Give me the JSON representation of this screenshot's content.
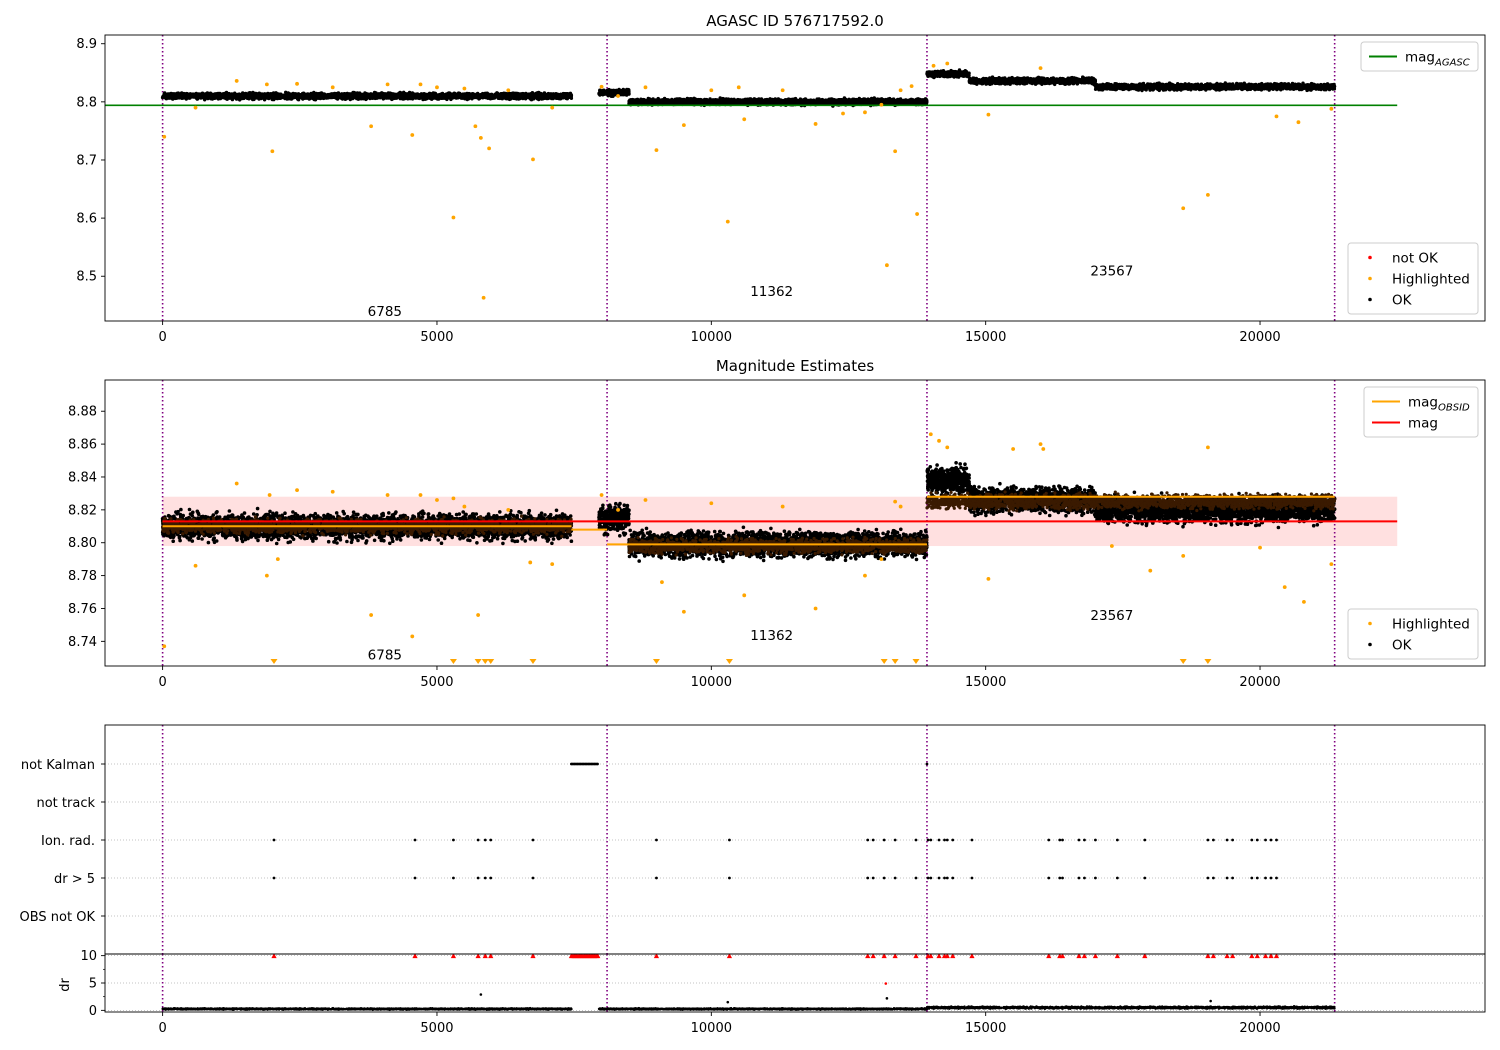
{
  "chart_data": [
    {
      "id": "p1",
      "type": "scatter",
      "title": "AGASC ID 576717592.0",
      "xlim": [
        -1050,
        24100
      ],
      "ylim": [
        8.423,
        8.915
      ],
      "xticks": [
        0,
        5000,
        10000,
        15000,
        20000
      ],
      "yticks": [
        8.5,
        8.6,
        8.7,
        8.8,
        8.9
      ],
      "grid": false,
      "obs_boundaries": [
        0,
        8100,
        13930,
        21360
      ],
      "obsid_labels": [
        {
          "text": "6785",
          "x": 4050,
          "y": 8.44
        },
        {
          "text": "11362",
          "x": 11100,
          "y": 8.475
        },
        {
          "text": "23567",
          "x": 17300,
          "y": 8.51
        }
      ],
      "lines": [
        {
          "name": "mag_AGASC",
          "color": "#008000",
          "x": [
            -1050,
            22500
          ],
          "y": [
            8.794,
            8.794
          ]
        }
      ],
      "bands": [
        {
          "name": "OK",
          "color": "#000000",
          "segments": [
            {
              "x0": 0,
              "x1": 7450,
              "center": 8.81,
              "spread": 0.009
            },
            {
              "x0": 7950,
              "x1": 8500,
              "center": 8.816,
              "spread": 0.009
            },
            {
              "x0": 8500,
              "x1": 13930,
              "center": 8.8,
              "spread": 0.009
            },
            {
              "x0": 13930,
              "x1": 14700,
              "center": 8.848,
              "spread": 0.009
            },
            {
              "x0": 14700,
              "x1": 17000,
              "center": 8.836,
              "spread": 0.009
            },
            {
              "x0": 17000,
              "x1": 21360,
              "center": 8.826,
              "spread": 0.009
            }
          ]
        }
      ],
      "series": [
        {
          "name": "not OK",
          "color": "#ff0000",
          "x": [],
          "y": []
        },
        {
          "name": "Highlighted",
          "color": "#ffa500",
          "x": [
            30,
            600,
            1350,
            1900,
            2000,
            2450,
            3100,
            3800,
            4100,
            4550,
            4700,
            5000,
            5300,
            5500,
            5700,
            5800,
            5850,
            5950,
            6300,
            6750,
            7100,
            8000,
            8300,
            8800,
            9000,
            9500,
            10000,
            10300,
            10500,
            10600,
            11300,
            11900,
            12400,
            12800,
            13100,
            13200,
            13350,
            13450,
            13650,
            13750,
            14050,
            14300,
            15050,
            16000,
            18600,
            19050,
            20300,
            20700,
            21300
          ],
          "y": [
            8.74,
            8.79,
            8.836,
            8.83,
            8.715,
            8.831,
            8.825,
            8.758,
            8.83,
            8.743,
            8.83,
            8.825,
            8.601,
            8.823,
            8.758,
            8.738,
            8.463,
            8.72,
            8.82,
            8.701,
            8.79,
            8.826,
            8.81,
            8.825,
            8.717,
            8.76,
            8.82,
            8.594,
            8.825,
            8.77,
            8.82,
            8.762,
            8.78,
            8.782,
            8.795,
            8.519,
            8.715,
            8.82,
            8.827,
            8.607,
            8.862,
            8.866,
            8.778,
            8.858,
            8.617,
            8.64,
            8.775,
            8.765,
            8.788
          ]
        },
        {
          "name": "OK",
          "color": "#000000",
          "x": [],
          "y": []
        }
      ],
      "legends": [
        {
          "position": "upper right",
          "entries": [
            {
              "label": "mag",
              "sub": "AGASC",
              "kind": "line",
              "color": "#008000"
            }
          ]
        },
        {
          "position": "lower right",
          "entries": [
            {
              "label": "not OK",
              "kind": "dot",
              "color": "#ff0000"
            },
            {
              "label": "Highlighted",
              "kind": "dot",
              "color": "#ffa500"
            },
            {
              "label": "OK",
              "kind": "dot",
              "color": "#000000"
            }
          ]
        }
      ]
    },
    {
      "id": "p2",
      "type": "scatter",
      "title": "Magnitude Estimates",
      "xlim": [
        -1050,
        24100
      ],
      "ylim": [
        8.725,
        8.899
      ],
      "xticks": [
        0,
        5000,
        10000,
        15000,
        20000
      ],
      "yticks": [
        8.74,
        8.76,
        8.78,
        8.8,
        8.82,
        8.84,
        8.86,
        8.88
      ],
      "ytick_labels": [
        "8.74",
        "8.76",
        "8.78",
        "8.80",
        "8.82",
        "8.84",
        "8.86",
        "8.88"
      ],
      "grid": false,
      "obs_boundaries": [
        0,
        8100,
        13930,
        21360
      ],
      "obsid_labels": [
        {
          "text": "6785",
          "x": 4050,
          "y": 8.732
        },
        {
          "text": "11362",
          "x": 11100,
          "y": 8.744
        },
        {
          "text": "23567",
          "x": 17300,
          "y": 8.756
        }
      ],
      "shaded_band": {
        "x0": 0,
        "x1": 22500,
        "y0": 8.798,
        "y1": 8.828,
        "color": "#ffcccc"
      },
      "bands": [
        {
          "name": "OK",
          "color": "#000000",
          "segments": [
            {
              "x0": 0,
              "x1": 7450,
              "center": 8.81,
              "spread": 0.014
            },
            {
              "x0": 7950,
              "x1": 8500,
              "center": 8.815,
              "spread": 0.014
            },
            {
              "x0": 8500,
              "x1": 13930,
              "center": 8.799,
              "spread": 0.014
            },
            {
              "x0": 13930,
              "x1": 14700,
              "center": 8.838,
              "spread": 0.015
            },
            {
              "x0": 14700,
              "x1": 17000,
              "center": 8.826,
              "spread": 0.014
            },
            {
              "x0": 17000,
              "x1": 21360,
              "center": 8.82,
              "spread": 0.014
            }
          ]
        }
      ],
      "inner_bands": [
        {
          "color": "#3a1a00",
          "segments": [
            {
              "x0": 0,
              "x1": 7450,
              "center": 8.81,
              "spread": 0.008
            },
            {
              "x0": 8500,
              "x1": 13930,
              "center": 8.798,
              "spread": 0.008
            },
            {
              "x0": 13930,
              "x1": 21360,
              "center": 8.825,
              "spread": 0.008
            }
          ]
        }
      ],
      "lines": [
        {
          "name": "mag_OBSID",
          "color": "#ffa500",
          "segments": [
            {
              "x": [
                0,
                7450
              ],
              "y": [
                8.81,
                8.81
              ]
            },
            {
              "x": [
                7450,
                8100
              ],
              "y": [
                8.808,
                8.808
              ]
            },
            {
              "x": [
                8100,
                13930
              ],
              "y": [
                8.799,
                8.799
              ]
            },
            {
              "x": [
                13930,
                21360
              ],
              "y": [
                8.828,
                8.828
              ]
            }
          ]
        },
        {
          "name": "mag",
          "color": "#ff0000",
          "segments": [
            {
              "x": [
                0,
                22500
              ],
              "y": [
                8.813,
                8.813
              ]
            }
          ]
        }
      ],
      "series": [
        {
          "name": "Highlighted",
          "color": "#ffa500",
          "x": [
            30,
            600,
            1350,
            1900,
            1950,
            2100,
            2450,
            3100,
            3800,
            4100,
            4550,
            4700,
            5000,
            5300,
            5500,
            5750,
            6300,
            6700,
            7100,
            8000,
            8300,
            8800,
            9100,
            9500,
            10000,
            10600,
            11300,
            11900,
            12800,
            13100,
            13350,
            13450,
            14000,
            14150,
            14300,
            15050,
            15500,
            16000,
            16050,
            17300,
            18000,
            18600,
            19050,
            20000,
            20450,
            20800,
            21300
          ],
          "y": [
            8.737,
            8.786,
            8.836,
            8.78,
            8.829,
            8.79,
            8.832,
            8.831,
            8.756,
            8.829,
            8.743,
            8.829,
            8.826,
            8.827,
            8.822,
            8.756,
            8.82,
            8.788,
            8.787,
            8.829,
            8.82,
            8.826,
            8.776,
            8.758,
            8.824,
            8.768,
            8.822,
            8.76,
            8.78,
            8.79,
            8.825,
            8.822,
            8.866,
            8.862,
            8.858,
            8.778,
            8.857,
            8.86,
            8.857,
            8.798,
            8.783,
            8.792,
            8.858,
            8.797,
            8.773,
            8.764,
            8.787
          ]
        },
        {
          "name": "OK",
          "color": "#000000",
          "x": [],
          "y": []
        }
      ],
      "clipped_markers": {
        "color": "#ffa500",
        "x": [
          2030,
          5300,
          5750,
          5880,
          5980,
          6750,
          9000,
          10330,
          13150,
          13350,
          13730,
          18600,
          19050
        ]
      },
      "legends": [
        {
          "position": "upper right",
          "entries": [
            {
              "label": "mag",
              "sub": "OBSID",
              "kind": "line",
              "color": "#ffa500"
            },
            {
              "label": "mag",
              "kind": "line",
              "color": "#ff0000"
            }
          ]
        },
        {
          "position": "lower right",
          "entries": [
            {
              "label": "Highlighted",
              "kind": "dot",
              "color": "#ffa500"
            },
            {
              "label": "OK",
              "kind": "dot",
              "color": "#000000"
            }
          ]
        }
      ]
    },
    {
      "id": "p3",
      "type": "scatter",
      "title": "",
      "xlim": [
        -1050,
        24100
      ],
      "grid": "horizontal dotted",
      "obs_boundaries": [
        0,
        8100,
        13930,
        21360
      ],
      "categories": [
        "not Kalman",
        "not track",
        "Ion. rad.",
        "dr > 5",
        "OBS not OK"
      ],
      "flags": {
        "not Kalman": {
          "x": [
            13930
          ],
          "ranges": [
            [
              7450,
              7950
            ]
          ]
        },
        "not track": {
          "x": [],
          "ranges": []
        },
        "Ion. rad.": {
          "x": [
            2030,
            4600,
            5300,
            5750,
            5880,
            5980,
            6750,
            9000,
            10330,
            12850,
            12950,
            13150,
            13350,
            13730,
            13950,
            14000,
            14150,
            14250,
            14300,
            14400,
            14750,
            16150,
            16350,
            16400,
            16700,
            16800,
            17000,
            17400,
            17900,
            19050,
            19150,
            19400,
            19500,
            19850,
            19950,
            20100,
            20200,
            20300
          ]
        },
        "dr > 5": {
          "x": [
            2030,
            4600,
            5300,
            5750,
            5880,
            5980,
            6750,
            9000,
            10330,
            12850,
            12950,
            13150,
            13350,
            13730,
            13950,
            14000,
            14150,
            14250,
            14300,
            14400,
            14750,
            16150,
            16350,
            16400,
            16700,
            16800,
            17000,
            17400,
            17900,
            19050,
            19150,
            19400,
            19500,
            19850,
            19950,
            20100,
            20200,
            20300
          ]
        },
        "OBS not OK": {
          "x": []
        }
      }
    },
    {
      "id": "p4",
      "type": "scatter",
      "title": "",
      "ylabel": "dr",
      "xlim": [
        -1050,
        24100
      ],
      "ylim": [
        -0.3,
        10.3
      ],
      "xticks": [
        0,
        5000,
        10000,
        15000,
        20000
      ],
      "yticks": [
        0,
        5,
        10
      ],
      "grid": "horizontal dotted",
      "clip_threshold": 10,
      "obs_boundaries": [
        0,
        8100,
        13930,
        21360
      ],
      "bands": [
        {
          "name": "dr",
          "color": "#000000",
          "segments": [
            {
              "x0": 0,
              "x1": 7450,
              "center": 0.25,
              "spread": 0.22
            },
            {
              "x0": 7950,
              "x1": 13930,
              "center": 0.25,
              "spread": 0.22
            },
            {
              "x0": 13930,
              "x1": 21360,
              "center": 0.5,
              "spread": 0.35
            }
          ]
        }
      ],
      "series": [
        {
          "name": "dr outliers",
          "color": "#000000",
          "x": [
            5800,
            10300,
            13200,
            19100
          ],
          "y": [
            2.9,
            1.5,
            2.2,
            1.7
          ]
        },
        {
          "name": "dr mid",
          "color": "#ff0000",
          "x": [
            13180
          ],
          "y": [
            4.9
          ]
        }
      ],
      "clipped_markers": {
        "color": "#ff0000",
        "x": [
          2030,
          4600,
          5300,
          5750,
          5880,
          5980,
          6750,
          9000,
          10330,
          12850,
          12950,
          13150,
          13350,
          13730,
          13950,
          14000,
          14150,
          14250,
          14300,
          14400,
          14750,
          16150,
          16350,
          16400,
          16700,
          16800,
          17000,
          17400,
          17900,
          19050,
          19150,
          19400,
          19500,
          19850,
          19950,
          20100,
          20200,
          20300
        ]
      },
      "clipped_ranges": {
        "color": "#ff0000",
        "ranges": [
          [
            7450,
            7950
          ]
        ]
      }
    }
  ]
}
